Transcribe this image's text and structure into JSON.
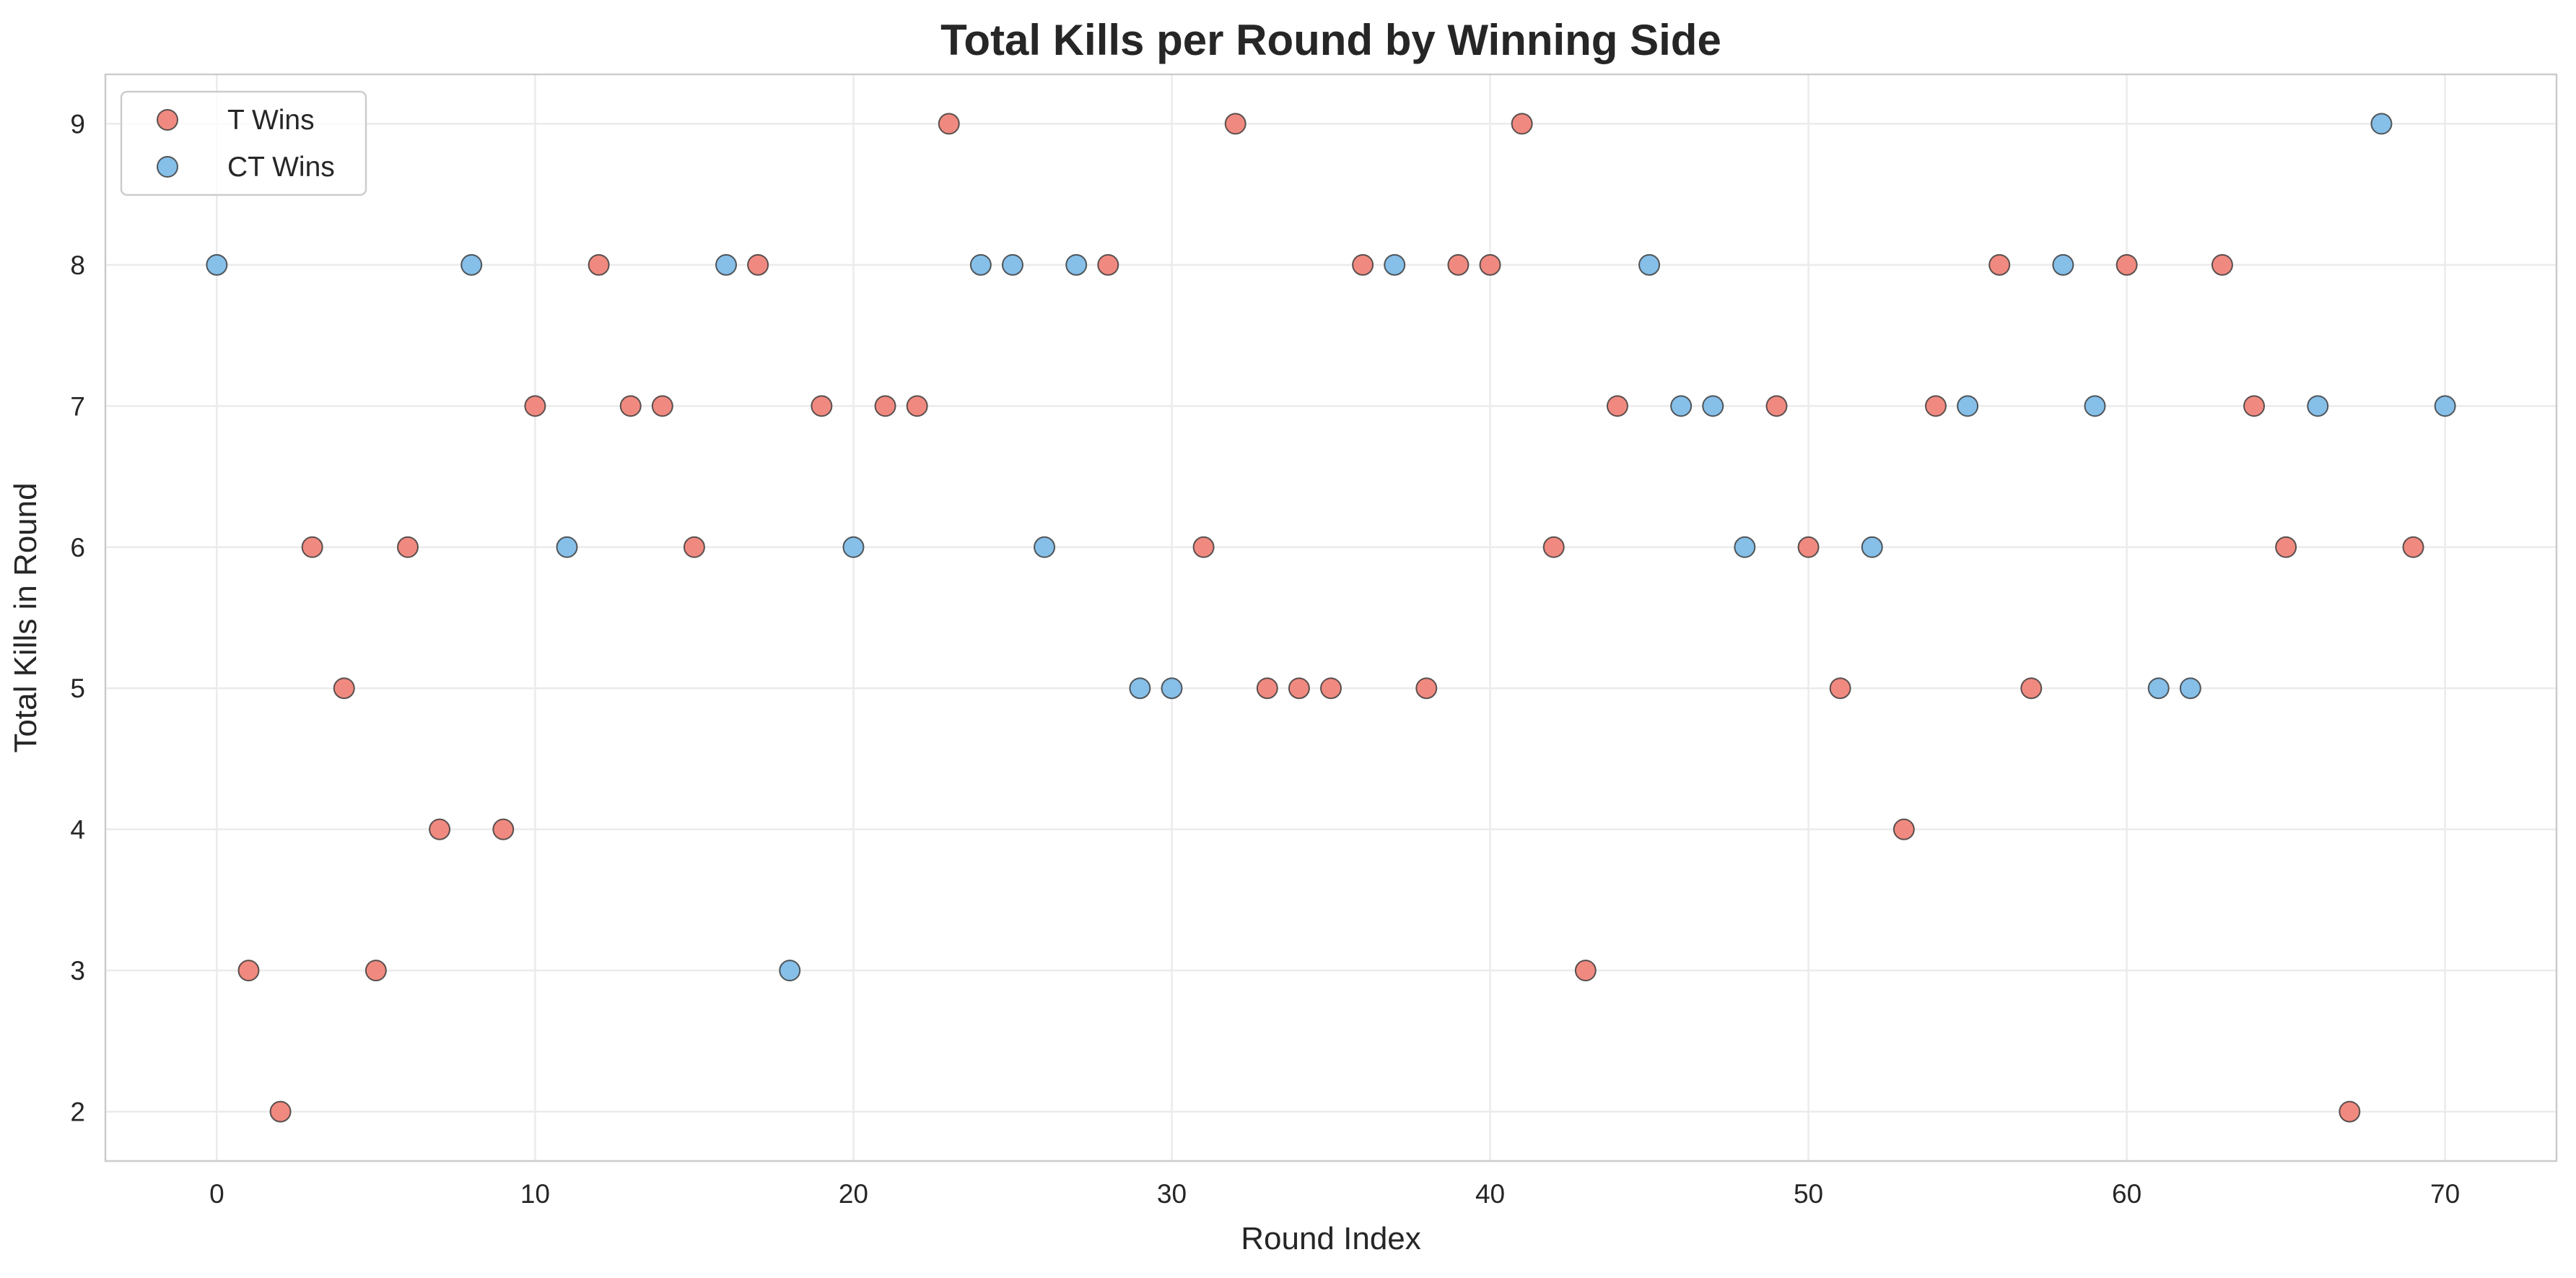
{
  "chart_data": {
    "type": "scatter",
    "title": "Total Kills per Round by Winning Side",
    "xlabel": "Round Index",
    "ylabel": "Total Kills in Round",
    "xlim": [
      -3.5,
      73.5
    ],
    "ylim": [
      1.65,
      9.35
    ],
    "xticks": [
      0,
      10,
      20,
      30,
      40,
      50,
      60,
      70
    ],
    "yticks": [
      2,
      3,
      4,
      5,
      6,
      7,
      8,
      9
    ],
    "grid": true,
    "legend_position": "top-left",
    "series": [
      {
        "name": "T Wins",
        "color": "#f08a80",
        "points": [
          [
            1,
            3
          ],
          [
            2,
            2
          ],
          [
            3,
            6
          ],
          [
            4,
            5
          ],
          [
            5,
            3
          ],
          [
            6,
            6
          ],
          [
            7,
            4
          ],
          [
            9,
            4
          ],
          [
            10,
            7
          ],
          [
            12,
            8
          ],
          [
            13,
            7
          ],
          [
            14,
            7
          ],
          [
            15,
            6
          ],
          [
            17,
            8
          ],
          [
            19,
            7
          ],
          [
            21,
            7
          ],
          [
            22,
            7
          ],
          [
            23,
            9
          ],
          [
            28,
            8
          ],
          [
            31,
            6
          ],
          [
            32,
            9
          ],
          [
            33,
            5
          ],
          [
            34,
            5
          ],
          [
            35,
            5
          ],
          [
            36,
            8
          ],
          [
            38,
            5
          ],
          [
            39,
            8
          ],
          [
            40,
            8
          ],
          [
            41,
            9
          ],
          [
            42,
            6
          ],
          [
            43,
            3
          ],
          [
            44,
            7
          ],
          [
            49,
            7
          ],
          [
            50,
            6
          ],
          [
            51,
            5
          ],
          [
            53,
            4
          ],
          [
            54,
            7
          ],
          [
            56,
            8
          ],
          [
            57,
            5
          ],
          [
            60,
            8
          ],
          [
            63,
            8
          ],
          [
            64,
            7
          ],
          [
            65,
            6
          ],
          [
            67,
            2
          ],
          [
            69,
            6
          ]
        ]
      },
      {
        "name": "CT Wins",
        "color": "#86bfe8",
        "points": [
          [
            0,
            8
          ],
          [
            8,
            8
          ],
          [
            11,
            6
          ],
          [
            16,
            8
          ],
          [
            18,
            3
          ],
          [
            20,
            6
          ],
          [
            24,
            8
          ],
          [
            25,
            8
          ],
          [
            26,
            6
          ],
          [
            27,
            8
          ],
          [
            29,
            5
          ],
          [
            30,
            5
          ],
          [
            37,
            8
          ],
          [
            45,
            8
          ],
          [
            46,
            7
          ],
          [
            47,
            7
          ],
          [
            48,
            6
          ],
          [
            52,
            6
          ],
          [
            55,
            7
          ],
          [
            58,
            8
          ],
          [
            59,
            7
          ],
          [
            61,
            5
          ],
          [
            62,
            5
          ],
          [
            66,
            7
          ],
          [
            68,
            9
          ],
          [
            70,
            7
          ]
        ]
      }
    ]
  }
}
